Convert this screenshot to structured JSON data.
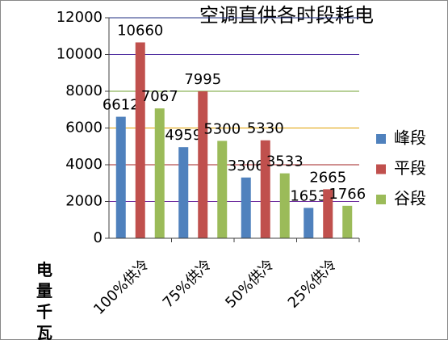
{
  "chart_data": {
    "type": "bar",
    "title": "空调直供各时段耗电",
    "y_label": "电量千瓦",
    "categories": [
      "100%供冷",
      "75%供冷",
      "50%供冷",
      "25%供冷"
    ],
    "series": [
      {
        "name": "峰段",
        "color": "#4f81bd",
        "values": [
          6612,
          4959,
          3306,
          1653
        ]
      },
      {
        "name": "平段",
        "color": "#c0504d",
        "values": [
          10660,
          7995,
          5330,
          2665
        ]
      },
      {
        "name": "谷段",
        "color": "#9bbb59",
        "values": [
          7067,
          5300,
          3533,
          1766
        ]
      }
    ],
    "ylim": [
      0,
      12000
    ],
    "yticks": [
      0,
      2000,
      4000,
      6000,
      8000,
      10000,
      12000
    ],
    "grid": true,
    "grid_colors": [
      "#404040",
      "#7030a0",
      "#a02020",
      "#e0a000",
      "#70a030",
      "#5030a0",
      "#1f2f80"
    ],
    "legend": "right"
  }
}
